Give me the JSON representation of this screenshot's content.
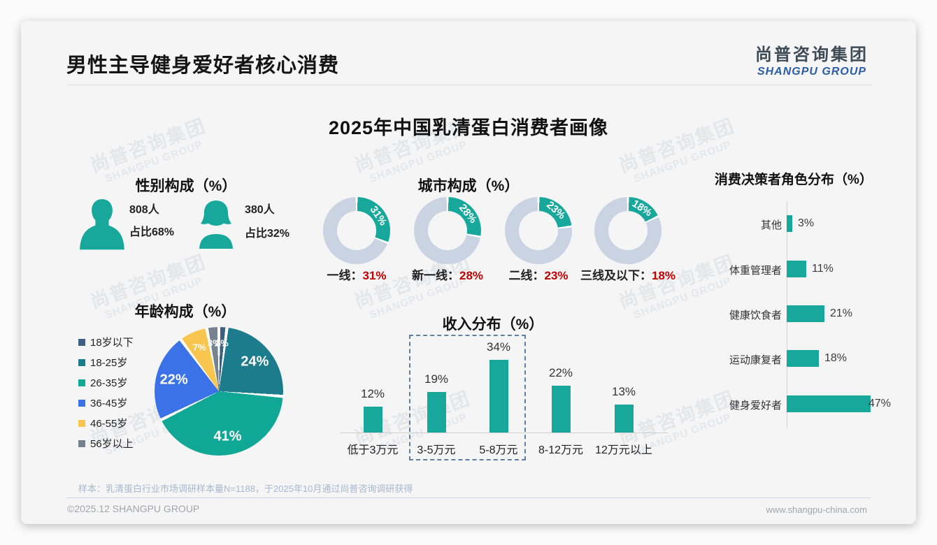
{
  "page": {
    "header_title": "男性主导健身爱好者核心消费",
    "logo": {
      "cn": "尚普咨询集团",
      "en": "SHANGPU GROUP"
    },
    "main_title": "2025年中国乳清蛋白消费者画像",
    "footnote": "样本：乳清蛋白行业市场调研样本量N=1188，于2025年10月通过尚普咨询调研获得",
    "copyright": "©2025.12 SHANGPU GROUP",
    "website": "www.shangpu-china.com",
    "watermark": {
      "cn": "尚普咨询集团",
      "en": "SHANGPU GROUP"
    }
  },
  "colors": {
    "teal": "#17A89B",
    "donut_rest": "#C9D3E2",
    "red": "#C00000"
  },
  "gender": {
    "title": "性别构成（%）",
    "male": {
      "count": "808人",
      "share": "占比68%"
    },
    "female": {
      "count": "380人",
      "share": "占比32%"
    }
  },
  "chart_data": [
    {
      "type": "pie",
      "subtype": "donut-row",
      "title": "城市构成（%）",
      "categories": [
        "一线",
        "新一线",
        "二线",
        "三线及以下"
      ],
      "values": [
        31,
        28,
        23,
        18
      ],
      "segment_color": "#17A89B",
      "rest_color": "#C9D3E2",
      "caption_value_color": "#C00000"
    },
    {
      "type": "bar",
      "subtype": "horizontal",
      "title": "消费决策者角色分布（%）",
      "categories": [
        "其他",
        "体重管理者",
        "健康饮食者",
        "运动康复者",
        "健身爱好者"
      ],
      "values": [
        3,
        11,
        21,
        18,
        47
      ],
      "bar_color": "#17A89B",
      "xlim": [
        0,
        50
      ]
    },
    {
      "type": "pie",
      "title": "年龄构成（%）",
      "categories": [
        "18岁以下",
        "18-25岁",
        "26-35岁",
        "36-45岁",
        "46-55岁",
        "56岁以上"
      ],
      "values": [
        2,
        24,
        41,
        22,
        7,
        3
      ],
      "colors": [
        "#3D5F82",
        "#1C7C8C",
        "#10A796",
        "#3B72E8",
        "#F8C54E",
        "#76828E"
      ]
    },
    {
      "type": "bar",
      "title": "收入分布（%）",
      "categories": [
        "低于3万元",
        "3-5万元",
        "5-8万元",
        "8-12万元",
        "12万元以上"
      ],
      "values": [
        12,
        19,
        34,
        22,
        13
      ],
      "bar_color": "#17A89B",
      "highlight_categories": [
        "3-5万元",
        "5-8万元"
      ],
      "ylim": [
        0,
        40
      ]
    }
  ]
}
